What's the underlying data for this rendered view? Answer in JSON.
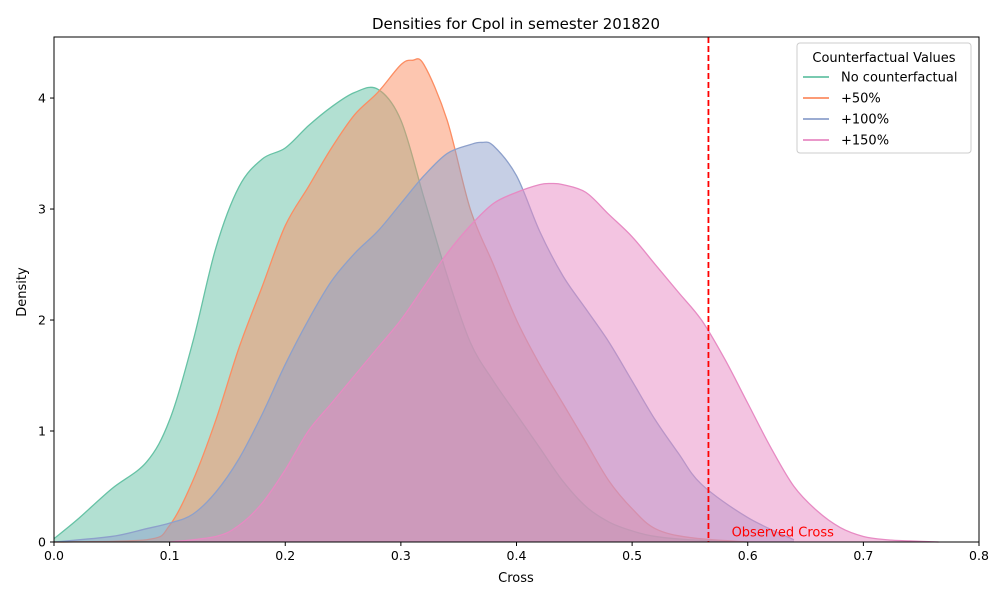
{
  "chart_data": {
    "type": "area",
    "title": "Densities for Cpol in semester 201820",
    "xlabel": "Cross",
    "ylabel": "Density",
    "xlim": [
      0.0,
      0.8
    ],
    "ylim": [
      0.0,
      4.55
    ],
    "xticks": [
      0.0,
      0.1,
      0.2,
      0.3,
      0.4,
      0.5,
      0.6,
      0.7,
      0.8
    ],
    "xtick_labels": [
      "0.0",
      "0.1",
      "0.2",
      "0.3",
      "0.4",
      "0.5",
      "0.6",
      "0.7",
      "0.8"
    ],
    "yticks": [
      0,
      1,
      2,
      3,
      4
    ],
    "ytick_labels": [
      "0",
      "1",
      "2",
      "3",
      "4"
    ],
    "grid": false,
    "legend": {
      "title": "Counterfactual Values",
      "placement": "top-right"
    },
    "series": [
      {
        "name": "No counterfactual",
        "color": "#66c2a5",
        "x": [
          0.0,
          0.02,
          0.05,
          0.08,
          0.1,
          0.12,
          0.14,
          0.16,
          0.18,
          0.2,
          0.22,
          0.24,
          0.26,
          0.28,
          0.3,
          0.32,
          0.34,
          0.36,
          0.38,
          0.4,
          0.42,
          0.44,
          0.46,
          0.48,
          0.5,
          0.52,
          0.55,
          0.6
        ],
        "y": [
          0.03,
          0.2,
          0.48,
          0.72,
          1.1,
          1.8,
          2.65,
          3.2,
          3.45,
          3.55,
          3.75,
          3.92,
          4.05,
          4.08,
          3.8,
          3.1,
          2.4,
          1.8,
          1.45,
          1.15,
          0.85,
          0.55,
          0.32,
          0.18,
          0.1,
          0.05,
          0.02,
          0.0
        ]
      },
      {
        "name": "+50%",
        "color": "#fc8d62",
        "x": [
          0.0,
          0.08,
          0.1,
          0.12,
          0.14,
          0.16,
          0.18,
          0.2,
          0.22,
          0.24,
          0.26,
          0.28,
          0.3,
          0.31,
          0.32,
          0.34,
          0.36,
          0.38,
          0.4,
          0.42,
          0.44,
          0.46,
          0.48,
          0.5,
          0.52,
          0.55,
          0.6
        ],
        "y": [
          0.0,
          0.02,
          0.15,
          0.55,
          1.1,
          1.75,
          2.3,
          2.85,
          3.2,
          3.55,
          3.85,
          4.05,
          4.3,
          4.34,
          4.3,
          3.8,
          3.0,
          2.5,
          2.0,
          1.6,
          1.25,
          0.9,
          0.55,
          0.3,
          0.12,
          0.04,
          0.0
        ]
      },
      {
        "name": "+100%",
        "color": "#8da0cb",
        "x": [
          0.0,
          0.05,
          0.08,
          0.1,
          0.12,
          0.14,
          0.16,
          0.18,
          0.2,
          0.22,
          0.24,
          0.26,
          0.28,
          0.3,
          0.32,
          0.34,
          0.36,
          0.37,
          0.38,
          0.4,
          0.42,
          0.44,
          0.46,
          0.48,
          0.5,
          0.52,
          0.54,
          0.56,
          0.6,
          0.64
        ],
        "y": [
          0.0,
          0.05,
          0.12,
          0.17,
          0.25,
          0.45,
          0.75,
          1.15,
          1.6,
          2.0,
          2.35,
          2.6,
          2.8,
          3.05,
          3.3,
          3.5,
          3.58,
          3.6,
          3.57,
          3.3,
          2.8,
          2.4,
          2.1,
          1.8,
          1.45,
          1.1,
          0.8,
          0.52,
          0.22,
          0.02
        ]
      },
      {
        "name": "+150%",
        "color": "#e78ac3",
        "x": [
          0.1,
          0.14,
          0.16,
          0.18,
          0.2,
          0.22,
          0.24,
          0.26,
          0.28,
          0.3,
          0.32,
          0.34,
          0.36,
          0.38,
          0.4,
          0.42,
          0.43,
          0.44,
          0.46,
          0.48,
          0.5,
          0.52,
          0.54,
          0.56,
          0.58,
          0.6,
          0.62,
          0.64,
          0.66,
          0.68,
          0.7,
          0.72,
          0.74,
          0.765
        ],
        "y": [
          0.0,
          0.05,
          0.15,
          0.35,
          0.65,
          1.0,
          1.25,
          1.5,
          1.75,
          2.0,
          2.3,
          2.6,
          2.85,
          3.05,
          3.15,
          3.22,
          3.23,
          3.22,
          3.15,
          2.95,
          2.75,
          2.5,
          2.25,
          2.0,
          1.65,
          1.25,
          0.85,
          0.5,
          0.28,
          0.13,
          0.05,
          0.02,
          0.01,
          0.0
        ]
      }
    ],
    "annotations": [
      {
        "type": "vline",
        "x": 0.566,
        "color": "#ff0000",
        "linestyle": "dashed"
      },
      {
        "type": "text",
        "text": "Observed Cross",
        "x": 0.586,
        "y": 0.05,
        "color": "#ff0000"
      }
    ]
  }
}
